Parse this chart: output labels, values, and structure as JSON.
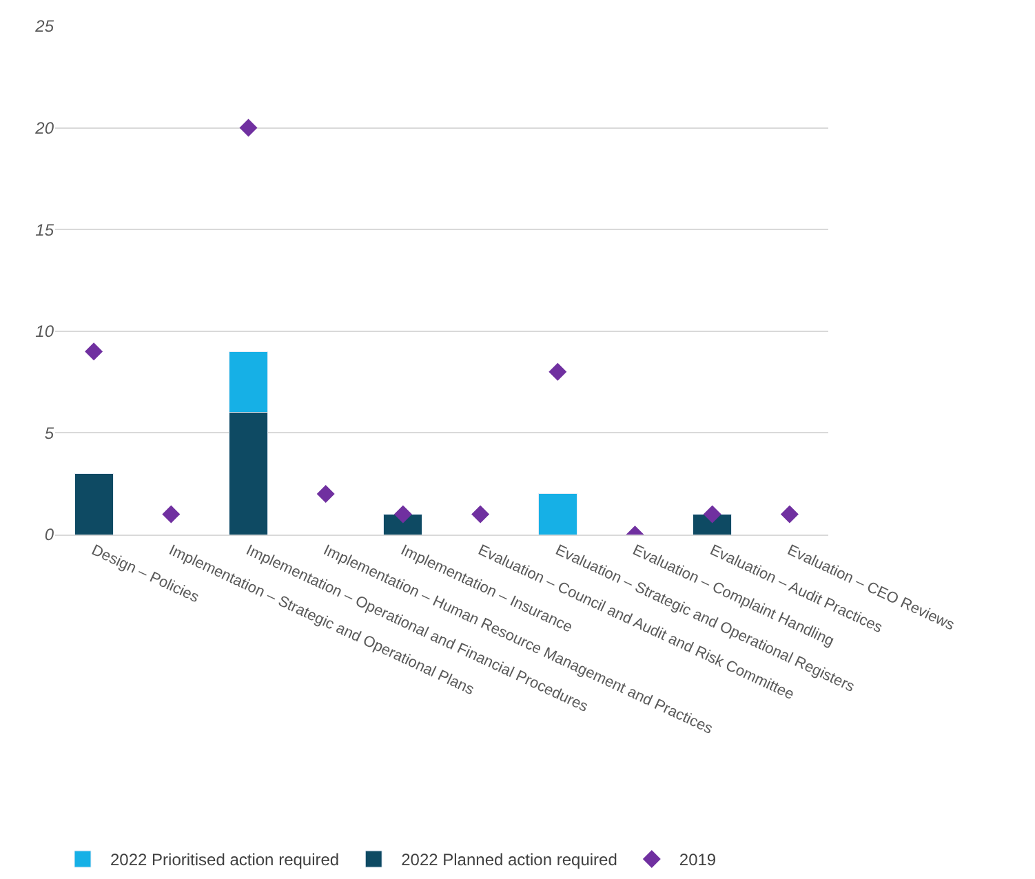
{
  "chart_data": {
    "type": "bar",
    "stacked": true,
    "categories": [
      "Design – Policies",
      "Implementation – Strategic and Operational Plans",
      "Implementation – Operational and Financial Procedures",
      "Implementation – Human Resource Management and Practices",
      "Implementation – Insurance",
      "Evaluation – Council and Audit and Risk Committee",
      "Evaluation – Strategic and Operational Registers",
      "Evaluation – Complaint Handling",
      "Evaluation – Audit Practices",
      "Evaluation – CEO Reviews"
    ],
    "series": [
      {
        "name": "2022 Planned action required",
        "color": "#0e4a63",
        "values": [
          3,
          null,
          6,
          null,
          1,
          null,
          null,
          null,
          1,
          null
        ]
      },
      {
        "name": "2022 Prioritised action required",
        "color": "#16b0e6",
        "values": [
          null,
          null,
          3,
          null,
          null,
          null,
          2,
          null,
          null,
          null
        ]
      },
      {
        "name": "2019",
        "type": "scatter",
        "marker": "diamond",
        "color": "#7030a0",
        "values": [
          9,
          1,
          20,
          2,
          1,
          1,
          8,
          0,
          1,
          1
        ]
      }
    ],
    "ylim": [
      0,
      25
    ],
    "yticks": [
      0,
      5,
      10,
      15,
      20,
      25
    ],
    "grid": "y",
    "legend": "bottom left"
  }
}
